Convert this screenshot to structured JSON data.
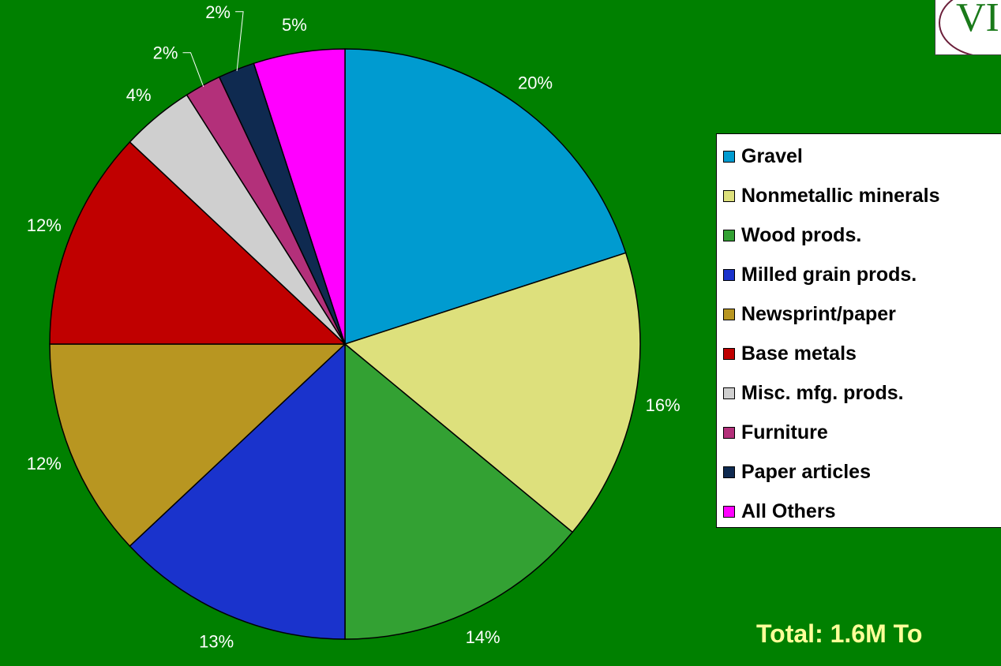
{
  "chart_data": {
    "type": "pie",
    "slices": [
      {
        "name": "Gravel",
        "value": 20,
        "label": "20%",
        "color": "#009bd0"
      },
      {
        "name": "Nonmetallic minerals",
        "value": 16,
        "label": "16%",
        "color": "#dde07c"
      },
      {
        "name": "Wood prods.",
        "value": 14,
        "label": "14%",
        "color": "#33a133"
      },
      {
        "name": "Milled grain prods.",
        "value": 13,
        "label": "13%",
        "color": "#1a33cc"
      },
      {
        "name": "Newsprint/paper",
        "value": 12,
        "label": "12%",
        "color": "#b89621"
      },
      {
        "name": "Base metals",
        "value": 12,
        "label": "12%",
        "color": "#c00000"
      },
      {
        "name": "Misc. mfg. prods.",
        "value": 4,
        "label": "4%",
        "color": "#cfcfcf"
      },
      {
        "name": "Furniture",
        "value": 2,
        "label": "2%",
        "color": "#b3307a"
      },
      {
        "name": "Paper articles",
        "value": 2,
        "label": "2%",
        "color": "#0f2a50"
      },
      {
        "name": "All Others",
        "value": 5,
        "label": "5%",
        "color": "#ff00ff"
      }
    ],
    "legend_position": "right"
  },
  "total_label": "Total: 1.6M To",
  "logo_text": "VI",
  "colors": {
    "background": "#008000",
    "total_text": "#ffff99",
    "logo_accent": "#6b1f3a"
  }
}
